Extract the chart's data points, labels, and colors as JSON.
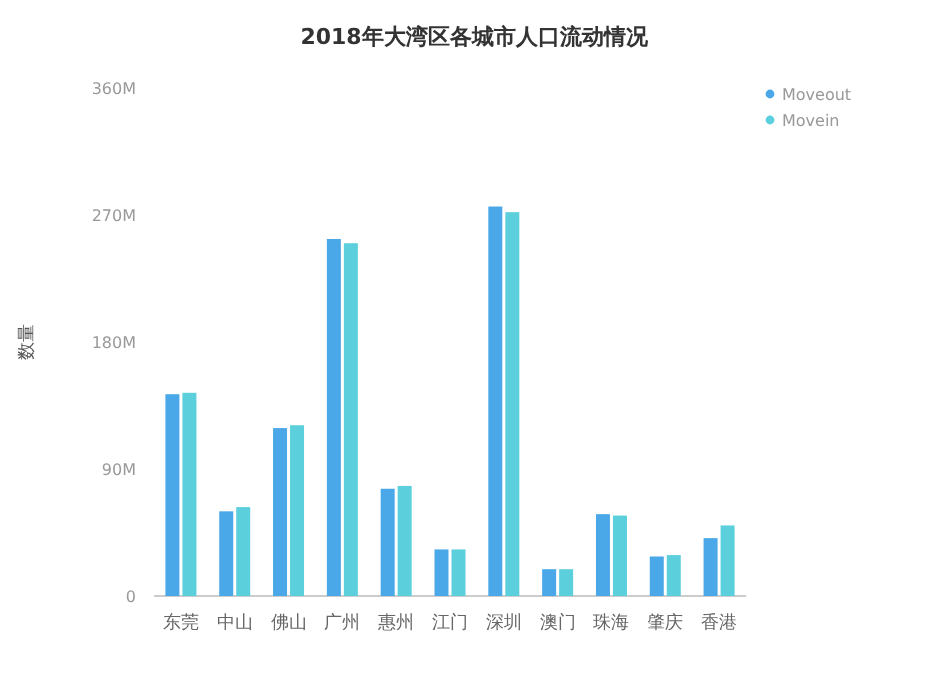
{
  "chart_data": {
    "type": "bar",
    "title": "2018年大湾区各城市人口流动情况",
    "ylabel": "数量",
    "categories": [
      "东莞",
      "中山",
      "佛山",
      "广州",
      "惠州",
      "江门",
      "深圳",
      "澳门",
      "珠海",
      "肇庆",
      "香港"
    ],
    "series": [
      {
        "name": "Moveout",
        "color": "#4aa8e8",
        "values": [
          143,
          60,
          119,
          253,
          76,
          33,
          276,
          19,
          58,
          28,
          41
        ]
      },
      {
        "name": "Movein",
        "color": "#5ccfdc",
        "values": [
          144,
          63,
          121,
          250,
          78,
          33,
          272,
          19,
          57,
          29,
          50
        ]
      }
    ],
    "ylim": [
      0,
      360
    ],
    "yticks": [
      0,
      {
        "value": 90,
        "label": "90M"
      },
      {
        "value": 180,
        "label": "180M"
      },
      {
        "value": 270,
        "label": "270M"
      },
      {
        "value": 360,
        "label": "360M"
      }
    ],
    "grid": false,
    "legend": "top right",
    "marker": "circle"
  }
}
